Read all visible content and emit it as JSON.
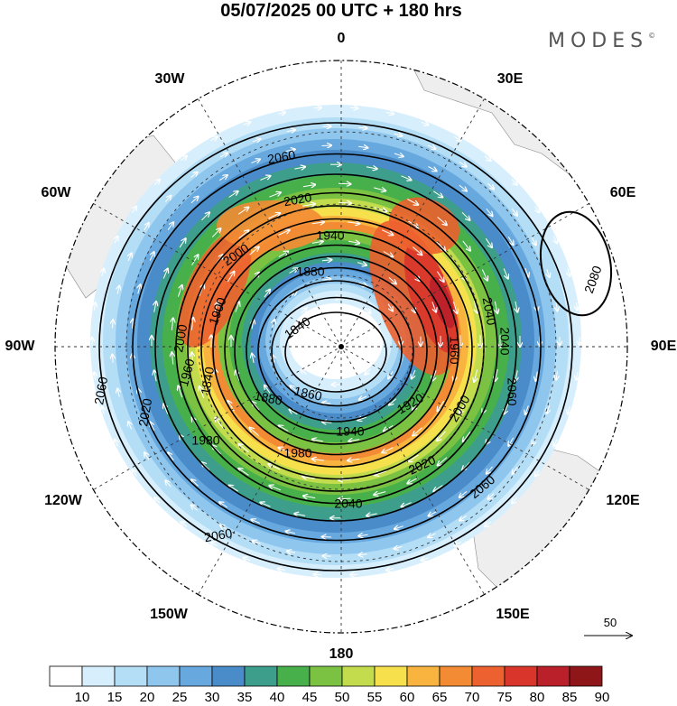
{
  "title": "05/07/2025  00 UTC  + 180 hrs",
  "brand": "MODES",
  "brand_mark": "©",
  "longitude_labels": {
    "lon_0": "0",
    "lon_30e": "30E",
    "lon_60e": "60E",
    "lon_90e": "90E",
    "lon_120e": "120E",
    "lon_150e": "150E",
    "lon_180": "180",
    "lon_150w": "150W",
    "lon_120w": "120W",
    "lon_90w": "90W",
    "lon_60w": "60W",
    "lon_30w": "30W"
  },
  "contour_labels": [
    "2060",
    "2020",
    "2000",
    "1940",
    "1880",
    "1900",
    "1840",
    "2000",
    "1960",
    "1840",
    "1860",
    "1880",
    "1920",
    "1940",
    "1980",
    "2020",
    "2040",
    "2060",
    "2060",
    "2040",
    "2060",
    "2080",
    "2040",
    "1960",
    "2000",
    "2060",
    "2020",
    "1980"
  ],
  "colorbar": {
    "labels": [
      "10",
      "15",
      "20",
      "25",
      "30",
      "35",
      "40",
      "45",
      "50",
      "55",
      "60",
      "65",
      "70",
      "75",
      "80",
      "85",
      "90"
    ],
    "colors": [
      "#ffffff",
      "#d7effc",
      "#b4ddf6",
      "#8fc6ee",
      "#67a8de",
      "#4a8cc9",
      "#3e9e8c",
      "#47b04a",
      "#7cc242",
      "#c3dc4e",
      "#f6e04c",
      "#f8b43e",
      "#f38b34",
      "#ec612f",
      "#d9352b",
      "#b9202a",
      "#8e1618"
    ]
  },
  "vector_scale_label": "50"
}
